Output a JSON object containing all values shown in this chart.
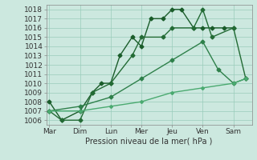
{
  "background_color": "#cce8df",
  "grid_color": "#99ccbb",
  "xlabel": "Pression niveau de la mer( hPa )",
  "xtick_labels": [
    "Mar",
    "Dim",
    "Lun",
    "Mer",
    "Jeu",
    "Ven",
    "Sam"
  ],
  "ylim": [
    1005.5,
    1018.5
  ],
  "yticks": [
    1006,
    1007,
    1008,
    1009,
    1010,
    1011,
    1012,
    1013,
    1014,
    1015,
    1016,
    1017,
    1018
  ],
  "xlim": [
    -0.1,
    6.6
  ],
  "series": [
    {
      "name": "line1_dark_detailed",
      "x": [
        0,
        0.4,
        1.0,
        1.4,
        1.7,
        2.0,
        2.3,
        2.7,
        3.0,
        3.3,
        3.7,
        4.0,
        4.3,
        4.7,
        5.0,
        5.3,
        5.7,
        6.0
      ],
      "y": [
        1008,
        1006,
        1007,
        1009,
        1010,
        1010,
        1013,
        1015,
        1014,
        1017,
        1017,
        1018,
        1018,
        1016,
        1016,
        1016,
        1016,
        1016
      ],
      "color": "#1a5c2a",
      "lw": 1.0,
      "marker": "D",
      "ms": 2.5
    },
    {
      "name": "line2_medium",
      "x": [
        0,
        0.4,
        1.0,
        1.4,
        2.0,
        2.7,
        3.0,
        3.7,
        4.0,
        4.7,
        5.0,
        5.3,
        6.0,
        6.4
      ],
      "y": [
        1007,
        1006,
        1006,
        1009,
        1010,
        1013,
        1015,
        1015,
        1016,
        1016,
        1018,
        1015,
        1016,
        1010.5
      ],
      "color": "#236b35",
      "lw": 1.0,
      "marker": "D",
      "ms": 2.5
    },
    {
      "name": "line3_lighter",
      "x": [
        0,
        1.0,
        2.0,
        3.0,
        4.0,
        5.0,
        5.5,
        6.0,
        6.4
      ],
      "y": [
        1007,
        1007.5,
        1008.5,
        1010.5,
        1012.5,
        1014.5,
        1011.5,
        1010,
        1010.5
      ],
      "color": "#2e804a",
      "lw": 1.0,
      "marker": "D",
      "ms": 2.5
    },
    {
      "name": "line4_lightest",
      "x": [
        0,
        1.0,
        2.0,
        3.0,
        4.0,
        5.0,
        6.0,
        6.4
      ],
      "y": [
        1007,
        1007,
        1007.5,
        1008.0,
        1009.0,
        1009.5,
        1010.0,
        1010.5
      ],
      "color": "#4aaa70",
      "lw": 1.0,
      "marker": "D",
      "ms": 2.0
    }
  ]
}
